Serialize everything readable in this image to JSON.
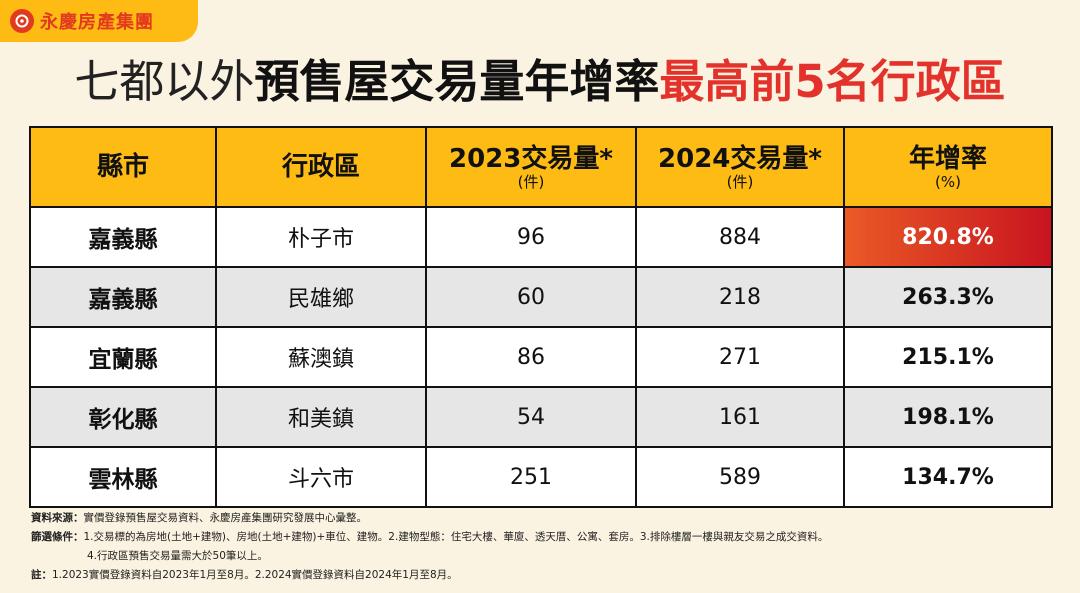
{
  "logo": {
    "text": "永慶房產集團"
  },
  "title": {
    "part1": "七都以外",
    "part2": "預售屋交易量年增率",
    "part3": "最高前5名行政區"
  },
  "table": {
    "headers": [
      {
        "label": "縣市",
        "unit": ""
      },
      {
        "label": "行政區",
        "unit": ""
      },
      {
        "label": "2023交易量*",
        "unit": "(件)"
      },
      {
        "label": "2024交易量*",
        "unit": "(件)"
      },
      {
        "label": "年增率",
        "unit": "(%)"
      }
    ],
    "rows": [
      {
        "county": "嘉義縣",
        "district": "朴子市",
        "v2023": "96",
        "v2024": "884",
        "rate": "820.8%"
      },
      {
        "county": "嘉義縣",
        "district": "民雄鄉",
        "v2023": "60",
        "v2024": "218",
        "rate": "263.3%"
      },
      {
        "county": "宜蘭縣",
        "district": "蘇澳鎮",
        "v2023": "86",
        "v2024": "271",
        "rate": "215.1%"
      },
      {
        "county": "彰化縣",
        "district": "和美鎮",
        "v2023": "54",
        "v2024": "161",
        "rate": "198.1%"
      },
      {
        "county": "雲林縣",
        "district": "斗六市",
        "v2023": "251",
        "v2024": "589",
        "rate": "134.7%"
      }
    ]
  },
  "notes": {
    "source_label": "資料來源：",
    "source_text": "實價登錄預售屋交易資料、永慶房產集團研究發展中心彙整。",
    "filter_label": "篩選條件：",
    "filter_text": "1.交易標的為房地(土地+建物)、房地(土地+建物)+車位、建物。2.建物型態：住宅大樓、華廈、透天厝、公寓、套房。3.排除樓層一樓與親友交易之成交資料。",
    "filter_text2": "4.行政區預售交易量需大於50筆以上。",
    "note_label": "註：",
    "note_text": "1.2023實價登錄資料自2023年1月至8月。2.2024實價登錄資料自2024年1月至8月。"
  },
  "colors": {
    "accent": "#fdbb13",
    "highlight": "#e3322b",
    "background": "#fbf3e1"
  }
}
